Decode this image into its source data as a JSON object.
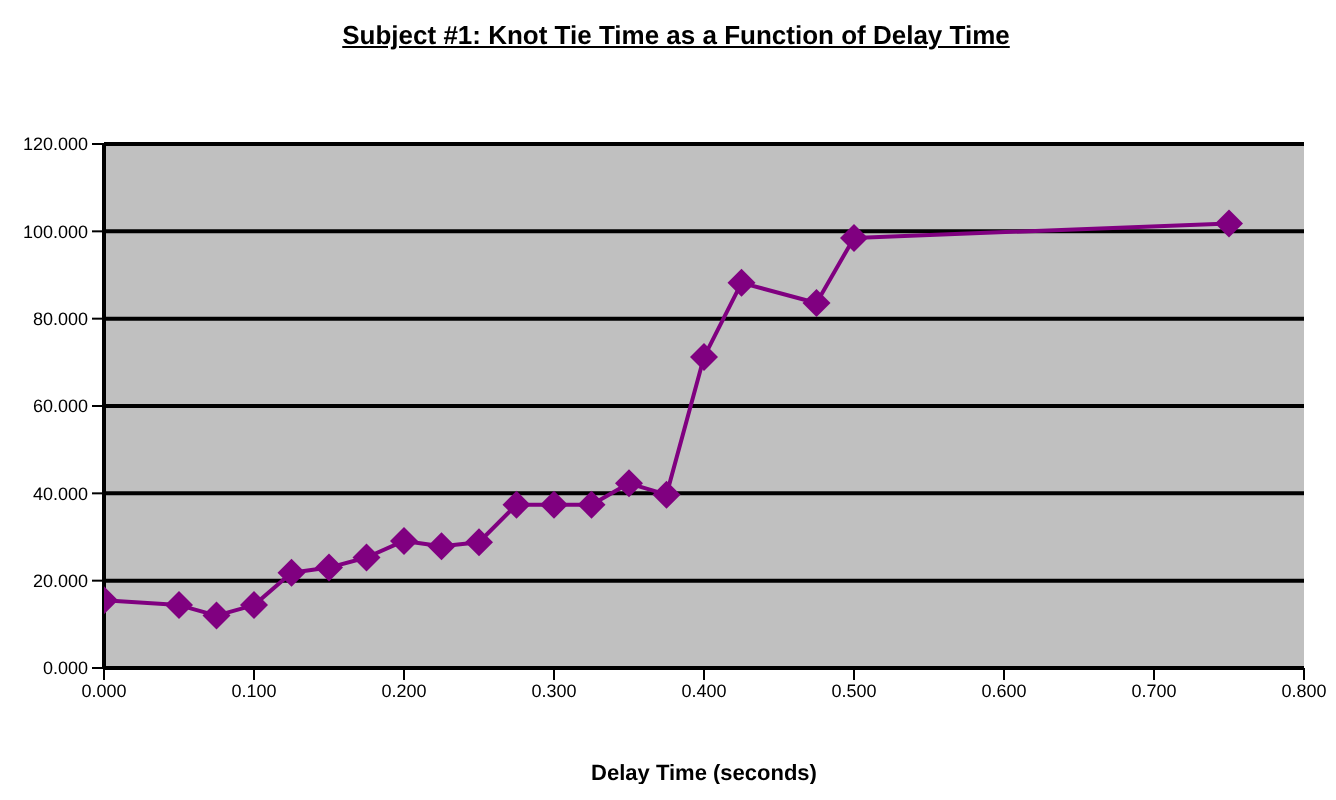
{
  "chart_data": {
    "type": "line",
    "title": "Subject #1: Knot Tie Time as a Function of Delay Time",
    "xlabel": "Delay Time (seconds)",
    "x": [
      0,
      0.05,
      0.075,
      0.1,
      0.125,
      0.15,
      0.175,
      0.2,
      0.225,
      0.25,
      0.275,
      0.3,
      0.325,
      0.35,
      0.375,
      0.4,
      0.425,
      0.475,
      0.5,
      0.75
    ],
    "series": [
      {
        "color": "#800080",
        "values": [
          15.5,
          14.4,
          12,
          14.4,
          21.8,
          23,
          25.3,
          29.1,
          27.9,
          28.8,
          37.4,
          37.4,
          37.4,
          42.3,
          39.7,
          71.2,
          88.2,
          83.6,
          98.5,
          101.8
        ]
      }
    ],
    "xlim": [
      0,
      0.8
    ],
    "xticks": [
      {
        "value": 0,
        "label": "0.000"
      },
      {
        "value": 0.1,
        "label": "0.100"
      },
      {
        "value": 0.2,
        "label": "0.200"
      },
      {
        "value": 0.3,
        "label": "0.300"
      },
      {
        "value": 0.4,
        "label": "0.400"
      },
      {
        "value": 0.5,
        "label": "0.500"
      },
      {
        "value": 0.6,
        "label": "0.600"
      },
      {
        "value": 0.7,
        "label": "0.700"
      },
      {
        "value": 0.8,
        "label": "0.800"
      }
    ],
    "ylim": [
      0,
      120
    ],
    "yticks": [
      {
        "value": 0,
        "label": "0.000"
      },
      {
        "value": 20,
        "label": "20.000"
      },
      {
        "value": 40,
        "label": "40.000"
      },
      {
        "value": 60,
        "label": "60.000"
      },
      {
        "value": 80,
        "label": "80.000"
      },
      {
        "value": 100,
        "label": "100.000"
      },
      {
        "value": 120,
        "label": "120.000"
      }
    ],
    "grid": "y",
    "marker": "diamond",
    "line_style": "solid"
  }
}
